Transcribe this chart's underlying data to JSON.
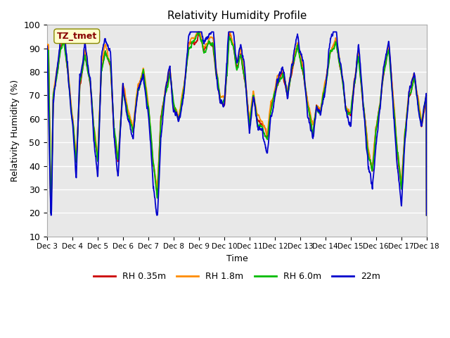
{
  "title": "Relativity Humidity Profile",
  "xlabel": "Time",
  "ylabel": "Relativity Humidity (%)",
  "ylim": [
    10,
    100
  ],
  "yticks": [
    10,
    20,
    30,
    40,
    50,
    60,
    70,
    80,
    90,
    100
  ],
  "annotation_label": "TZ_tmet",
  "annotation_box_facecolor": "#FFFFCC",
  "annotation_text_color": "#880000",
  "annotation_edge_color": "#888800",
  "plot_area_bg": "#E8E8E8",
  "figure_bg": "#FFFFFF",
  "grid_color": "#FFFFFF",
  "legend_labels": [
    "RH 0.35m",
    "RH 1.8m",
    "RH 6.0m",
    "22m"
  ],
  "line_colors": [
    "#CC0000",
    "#FF8C00",
    "#00BB00",
    "#0000CC"
  ],
  "line_width": 1.3,
  "spine_color": "#AAAAAA",
  "xtick_fontsize": 7.5,
  "ytick_fontsize": 9,
  "title_fontsize": 11,
  "axis_label_fontsize": 9,
  "legend_fontsize": 9
}
